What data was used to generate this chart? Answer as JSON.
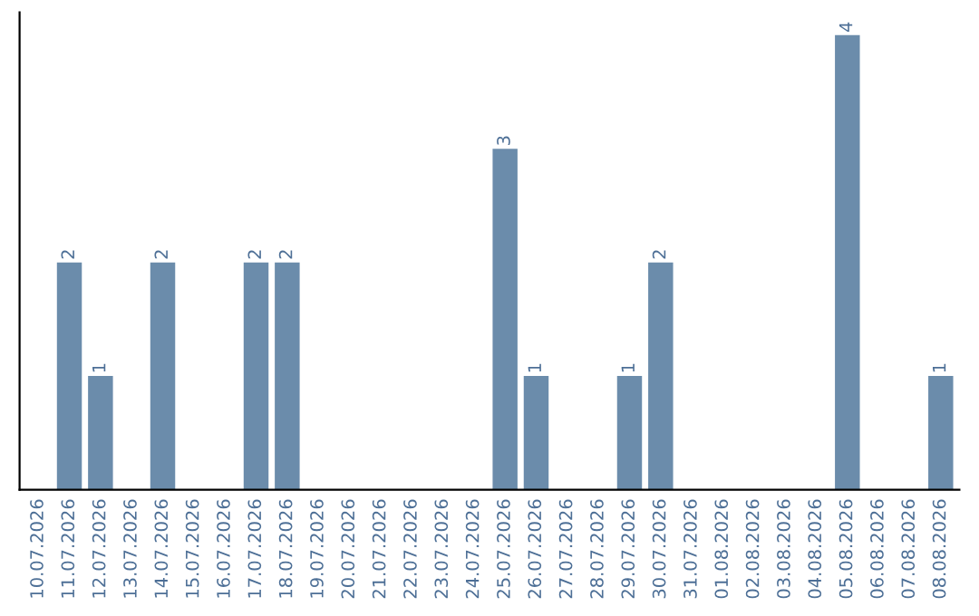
{
  "chart_data": {
    "type": "bar",
    "categories": [
      "10.07.2026",
      "11.07.2026",
      "12.07.2026",
      "13.07.2026",
      "14.07.2026",
      "15.07.2026",
      "16.07.2026",
      "17.07.2026",
      "18.07.2026",
      "19.07.2026",
      "20.07.2026",
      "21.07.2026",
      "22.07.2026",
      "23.07.2026",
      "24.07.2026",
      "25.07.2026",
      "26.07.2026",
      "27.07.2026",
      "28.07.2026",
      "29.07.2026",
      "30.07.2026",
      "31.07.2026",
      "01.08.2026",
      "02.08.2026",
      "03.08.2026",
      "04.08.2026",
      "05.08.2026",
      "06.08.2026",
      "07.08.2026",
      "08.08.2026"
    ],
    "values": [
      0,
      2,
      1,
      0,
      2,
      0,
      0,
      2,
      2,
      0,
      0,
      0,
      0,
      0,
      0,
      3,
      1,
      0,
      0,
      1,
      2,
      0,
      0,
      0,
      0,
      0,
      4,
      0,
      0,
      1
    ],
    "value_labels": [
      null,
      "2",
      "1",
      null,
      "2",
      null,
      null,
      "2",
      "2",
      null,
      null,
      null,
      null,
      null,
      null,
      "3",
      "1",
      null,
      null,
      "1",
      "2",
      null,
      null,
      null,
      null,
      null,
      "4",
      null,
      null,
      "1"
    ],
    "color": "#6b8cab",
    "tick_labels": "x",
    "grid": false
  }
}
